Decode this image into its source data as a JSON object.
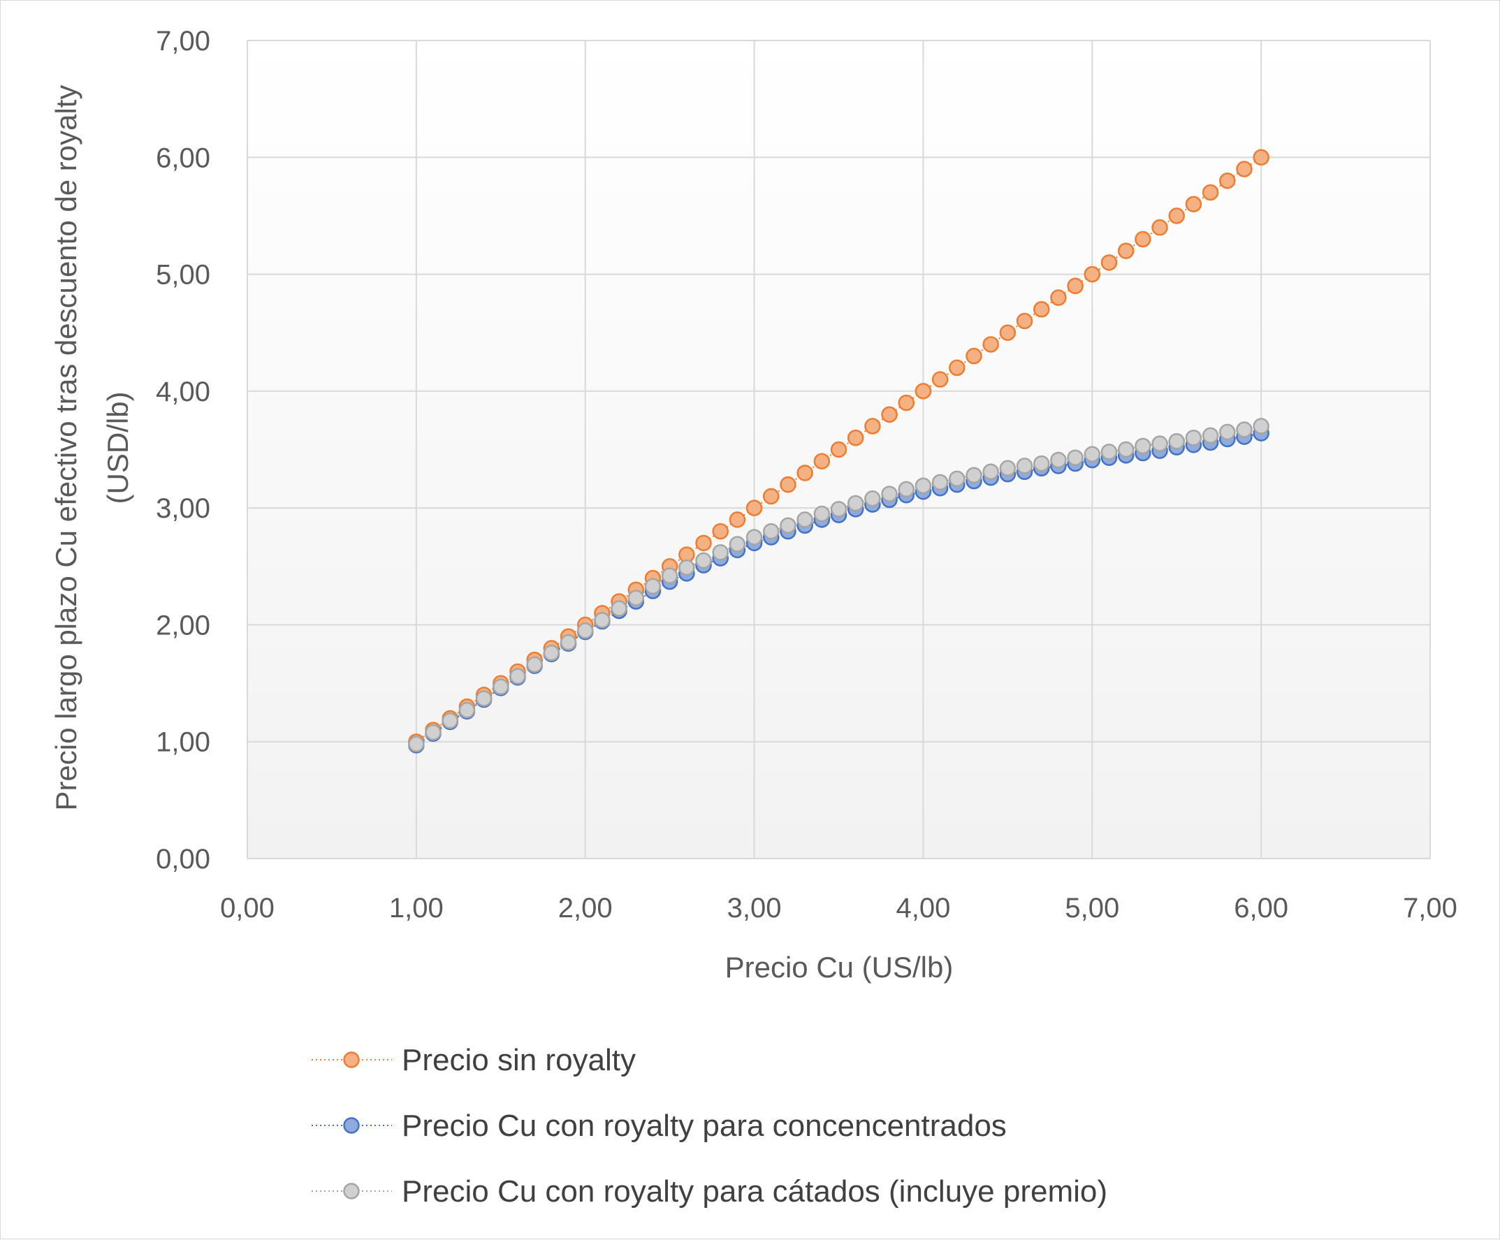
{
  "chart_data": {
    "type": "scatter",
    "xlabel": "Precio Cu (US/lb)",
    "ylabel_lines": [
      "Precio largo plazo Cu efectivo tras descuento de royalty",
      "(USD/lb)"
    ],
    "xlim": [
      0,
      7
    ],
    "ylim": [
      0,
      7
    ],
    "x_ticks": [
      "0,00",
      "1,00",
      "2,00",
      "3,00",
      "4,00",
      "5,00",
      "6,00",
      "7,00"
    ],
    "y_ticks": [
      "0,00",
      "1,00",
      "2,00",
      "3,00",
      "4,00",
      "5,00",
      "6,00",
      "7,00"
    ],
    "grid": true,
    "legend_position": "bottom",
    "x": [
      1.0,
      1.1,
      1.2,
      1.3,
      1.4,
      1.5,
      1.6,
      1.7,
      1.8,
      1.9,
      2.0,
      2.1,
      2.2,
      2.3,
      2.4,
      2.5,
      2.6,
      2.7,
      2.8,
      2.9,
      3.0,
      3.1,
      3.2,
      3.3,
      3.4,
      3.5,
      3.6,
      3.7,
      3.8,
      3.9,
      4.0,
      4.1,
      4.2,
      4.3,
      4.4,
      4.5,
      4.6,
      4.7,
      4.8,
      4.9,
      5.0,
      5.1,
      5.2,
      5.3,
      5.4,
      5.5,
      5.6,
      5.7,
      5.8,
      5.9,
      6.0
    ],
    "series": [
      {
        "name": "Precio sin royalty",
        "color": "#ED7D31",
        "fill": "#F4B183",
        "values": [
          1.0,
          1.1,
          1.2,
          1.3,
          1.4,
          1.5,
          1.6,
          1.7,
          1.8,
          1.9,
          2.0,
          2.1,
          2.2,
          2.3,
          2.4,
          2.5,
          2.6,
          2.7,
          2.8,
          2.9,
          3.0,
          3.1,
          3.2,
          3.3,
          3.4,
          3.5,
          3.6,
          3.7,
          3.8,
          3.9,
          4.0,
          4.1,
          4.2,
          4.3,
          4.4,
          4.5,
          4.6,
          4.7,
          4.8,
          4.9,
          5.0,
          5.1,
          5.2,
          5.3,
          5.4,
          5.5,
          5.6,
          5.7,
          5.8,
          5.9,
          6.0
        ]
      },
      {
        "name": "Precio Cu con royalty para concencentrados",
        "color": "#4472C4",
        "fill": "#8FAADC",
        "values": [
          0.97,
          1.07,
          1.17,
          1.26,
          1.36,
          1.46,
          1.55,
          1.65,
          1.75,
          1.84,
          1.94,
          2.03,
          2.12,
          2.2,
          2.29,
          2.37,
          2.44,
          2.51,
          2.57,
          2.64,
          2.7,
          2.75,
          2.8,
          2.85,
          2.9,
          2.94,
          2.99,
          3.03,
          3.07,
          3.11,
          3.14,
          3.17,
          3.2,
          3.23,
          3.26,
          3.29,
          3.31,
          3.34,
          3.36,
          3.38,
          3.41,
          3.43,
          3.45,
          3.47,
          3.49,
          3.52,
          3.54,
          3.56,
          3.59,
          3.61,
          3.64
        ]
      },
      {
        "name": "Precio Cu con royalty para cátados (incluye premio)",
        "color": "#A5A5A5",
        "fill": "#D0D0D0",
        "values": [
          0.98,
          1.08,
          1.18,
          1.27,
          1.37,
          1.47,
          1.56,
          1.66,
          1.76,
          1.85,
          1.95,
          2.04,
          2.14,
          2.23,
          2.33,
          2.42,
          2.49,
          2.55,
          2.62,
          2.69,
          2.75,
          2.8,
          2.85,
          2.9,
          2.95,
          2.99,
          3.04,
          3.08,
          3.12,
          3.16,
          3.19,
          3.22,
          3.25,
          3.28,
          3.31,
          3.34,
          3.36,
          3.38,
          3.41,
          3.43,
          3.46,
          3.48,
          3.5,
          3.53,
          3.55,
          3.57,
          3.6,
          3.62,
          3.65,
          3.67,
          3.7
        ]
      }
    ]
  }
}
